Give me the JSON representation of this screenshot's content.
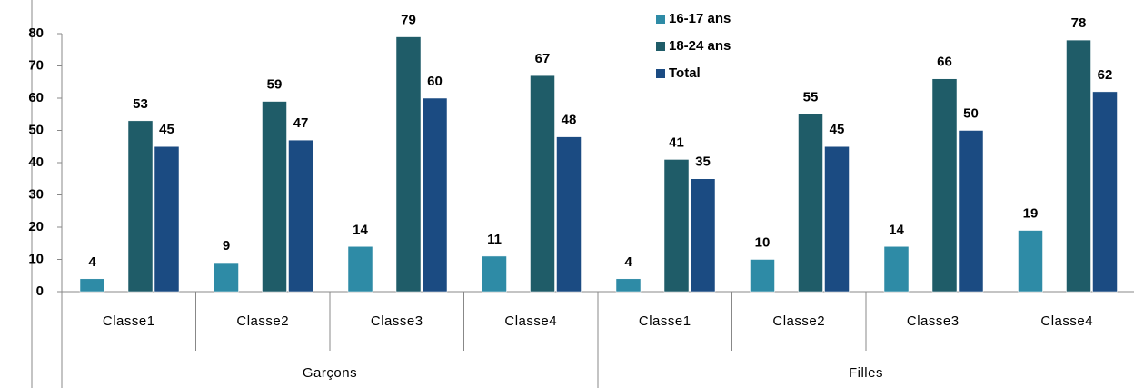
{
  "chart_data": {
    "type": "bar",
    "groups": [
      {
        "name": "Garçons",
        "categories": [
          "Classe1",
          "Classe2",
          "Classe3",
          "Classe4"
        ]
      },
      {
        "name": "Filles",
        "categories": [
          "Classe1",
          "Classe2",
          "Classe3",
          "Classe4"
        ]
      }
    ],
    "series": [
      {
        "name": "16-17 ans",
        "color": "#2e8ba6",
        "values": [
          4,
          9,
          14,
          11,
          4,
          10,
          14,
          19
        ]
      },
      {
        "name": "18-24 ans",
        "color": "#1f5c68",
        "values": [
          53,
          59,
          79,
          67,
          41,
          55,
          66,
          78
        ]
      },
      {
        "name": "Total",
        "color": "#1b4b82",
        "values": [
          45,
          47,
          60,
          48,
          35,
          45,
          50,
          62
        ]
      }
    ],
    "ylim": [
      0,
      80
    ],
    "yticks": [
      0,
      10,
      20,
      30,
      40,
      50,
      60,
      70,
      80
    ],
    "grid": false,
    "legend": "top"
  }
}
